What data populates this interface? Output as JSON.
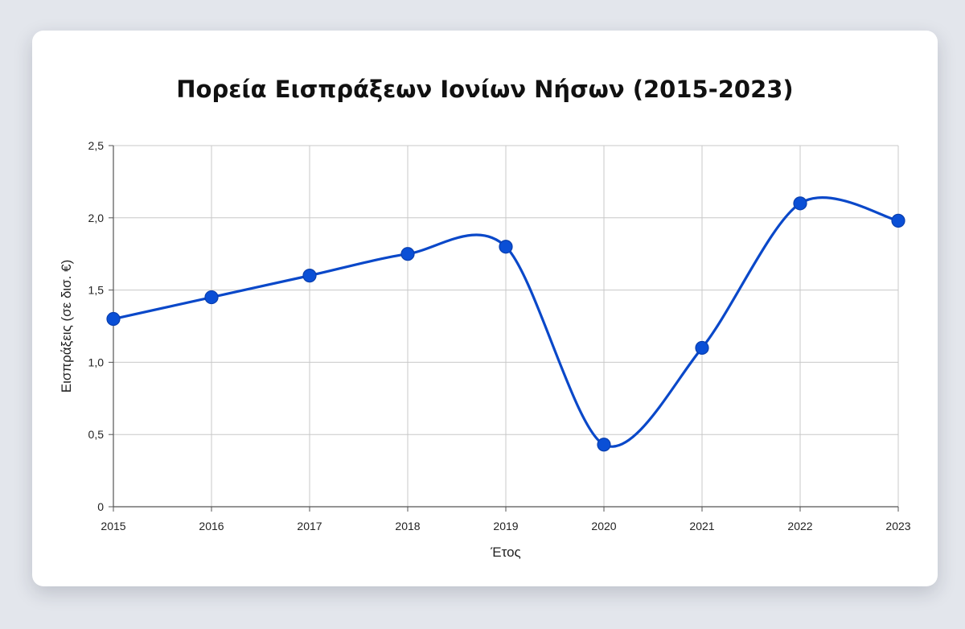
{
  "chart_data": {
    "type": "line",
    "title": "Πορεία Εισπράξεων Ιονίων Νήσων (2015-2023)",
    "xlabel": "Έτος",
    "ylabel": "Εισπράξεις (σε δισ. €)",
    "categories": [
      "2015",
      "2016",
      "2017",
      "2018",
      "2019",
      "2020",
      "2021",
      "2022",
      "2023"
    ],
    "series": [
      {
        "values": [
          1.3,
          1.45,
          1.6,
          1.75,
          1.8,
          0.43,
          1.1,
          2.1,
          1.98
        ],
        "color": "#0a48c9"
      }
    ],
    "ylim": [
      0,
      2.5
    ],
    "yticks": [
      0,
      0.5,
      1.0,
      1.5,
      2.0,
      2.5
    ],
    "ytick_labels": [
      "0",
      "0,5",
      "1,0",
      "1,5",
      "2,0",
      "2,5"
    ],
    "grid": true,
    "line_smoothing": "curved",
    "markers": "filled-circle",
    "legend": "none"
  },
  "colors": {
    "page_background": "#e3e6ec",
    "card_background": "#ffffff",
    "grid": "#c8c8c8",
    "axis": "#555555",
    "line": "#0a48c9",
    "marker_fill": "#0a4fd6"
  }
}
